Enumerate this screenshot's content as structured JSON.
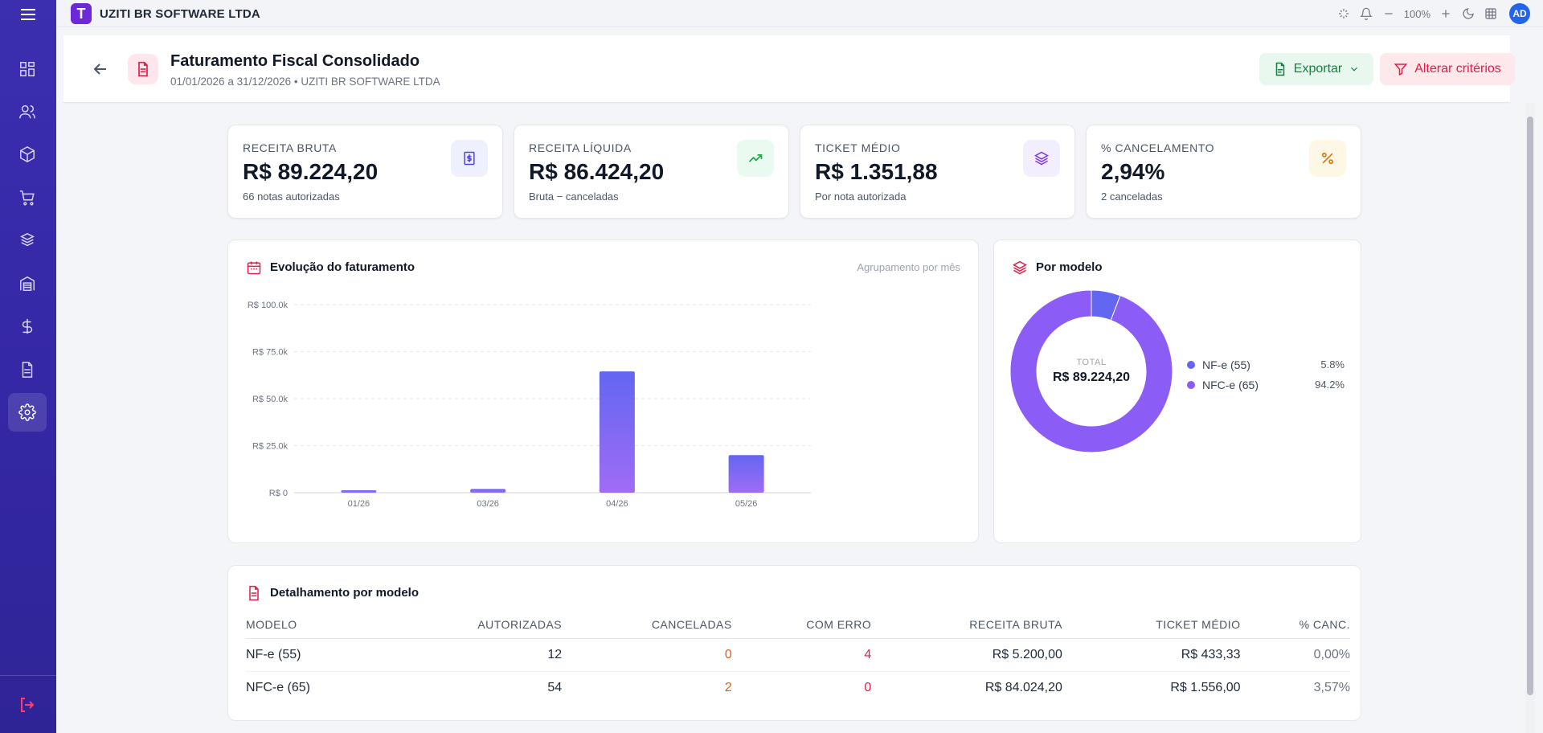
{
  "app": {
    "company": "UZITI BR SOFTWARE LTDA",
    "logo_letter": "T",
    "zoom": "100%",
    "avatar_initials": "AD"
  },
  "sidebar": {
    "items": [
      {
        "name": "dashboard",
        "icon": "grid-icon"
      },
      {
        "name": "people",
        "icon": "users-icon"
      },
      {
        "name": "products",
        "icon": "box-icon"
      },
      {
        "name": "sales",
        "icon": "cart-icon"
      },
      {
        "name": "stock",
        "icon": "boxes-icon"
      },
      {
        "name": "warehouse",
        "icon": "warehouse-icon"
      },
      {
        "name": "finance",
        "icon": "dollar-icon"
      },
      {
        "name": "fiscal",
        "icon": "document-icon"
      },
      {
        "name": "settings",
        "icon": "gear-icon",
        "active": true
      }
    ]
  },
  "header": {
    "title": "Faturamento Fiscal Consolidado",
    "subtitle": "01/01/2026 a 31/12/2026 • UZITI BR SOFTWARE LTDA",
    "export_label": "Exportar",
    "criteria_label": "Alterar critérios"
  },
  "kpis": [
    {
      "label": "RECEITA BRUTA",
      "value": "R$ 89.224,20",
      "sub": "66 notas autorizadas",
      "icon": "invoice-dollar-icon",
      "color": "#4f46e5",
      "bg": "#eef0fd"
    },
    {
      "label": "RECEITA LÍQUIDA",
      "value": "R$ 86.424,20",
      "sub": "Bruta − canceladas",
      "icon": "trending-up-icon",
      "color": "#16a34a",
      "bg": "#eafaf0"
    },
    {
      "label": "TICKET MÉDIO",
      "value": "R$ 1.351,88",
      "sub": "Por nota autorizada",
      "icon": "layers-icon",
      "color": "#7c3aed",
      "bg": "#f3eefe"
    },
    {
      "label": "% CANCELAMENTO",
      "value": "2,94%",
      "sub": "2 canceladas",
      "icon": "percent-icon",
      "color": "#d97706",
      "bg": "#fef7e6"
    }
  ],
  "evolution": {
    "title": "Evolução do faturamento",
    "grouping": "Agrupamento por mês"
  },
  "chart_data": {
    "type": "bar",
    "categories": [
      "01/26",
      "03/26",
      "04/26",
      "05/26"
    ],
    "values": [
      800,
      2000,
      64500,
      20000
    ],
    "ylim": [
      0,
      100000
    ],
    "y_ticks": [
      "R$ 0",
      "R$ 25.0k",
      "R$ 50.0k",
      "R$ 75.0k",
      "R$ 100.0k"
    ],
    "grid": true
  },
  "by_model": {
    "title": "Por modelo",
    "total_label": "TOTAL",
    "total_value": "R$ 89.224,20",
    "slices": [
      {
        "name": "NF-e (55)",
        "pct_label": "5.8%",
        "value": 5.8,
        "color": "#6366f1"
      },
      {
        "name": "NFC-e (65)",
        "pct_label": "94.2%",
        "value": 94.2,
        "color": "#8b5cf6"
      }
    ]
  },
  "detail": {
    "title": "Detalhamento por modelo",
    "columns": [
      "MODELO",
      "AUTORIZADAS",
      "CANCELADAS",
      "COM ERRO",
      "RECEITA BRUTA",
      "TICKET MÉDIO",
      "% CANC."
    ],
    "rows": [
      [
        "NF-e (55)",
        "12",
        "0",
        "4",
        "R$ 5.200,00",
        "R$ 433,33",
        "0,00%"
      ],
      [
        "NFC-e (65)",
        "54",
        "2",
        "0",
        "R$ 84.024,20",
        "R$ 1.556,00",
        "3,57%"
      ]
    ]
  }
}
